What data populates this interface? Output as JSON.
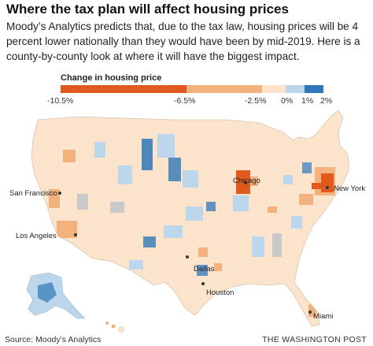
{
  "title": "Where the tax plan will affect housing prices",
  "description": "Moody’s Analytics predicts that, due to the tax law, housing prices will be 4 percent lower nationally than they would have been by mid-2019. Here is a county-by-county look at where it will have the biggest impact.",
  "legend": {
    "title": "Change in housing price",
    "ticks": [
      "-10.5%",
      "-6.5%",
      "-2.5%",
      "0%",
      "1%",
      "2%"
    ],
    "bins": [
      {
        "from": -10.5,
        "to": -6.5,
        "color": "#e05a1f"
      },
      {
        "from": -6.5,
        "to": -2.5,
        "color": "#f3b17e"
      },
      {
        "from": -2.5,
        "to": 0,
        "color": "#fbe3cc"
      },
      {
        "from": 0,
        "to": 1,
        "color": "#bcd7ec"
      },
      {
        "from": 1,
        "to": 2,
        "color": "#2f77b8"
      }
    ]
  },
  "cities": [
    "San Francisco",
    "Los Angeles",
    "Chicago",
    "New York",
    "Dallas",
    "Houston",
    "Miami"
  ],
  "source": "Source: Moody’s Analytics",
  "credit": "THE WASHINGTON POST",
  "colors": {
    "strong_decline": "#e05a1f",
    "moderate_decline": "#f3b17e",
    "slight_decline": "#fbe3cc",
    "slight_increase": "#bcd7ec",
    "increase": "#2f77b8",
    "no_data": "#c9c9c9"
  }
}
